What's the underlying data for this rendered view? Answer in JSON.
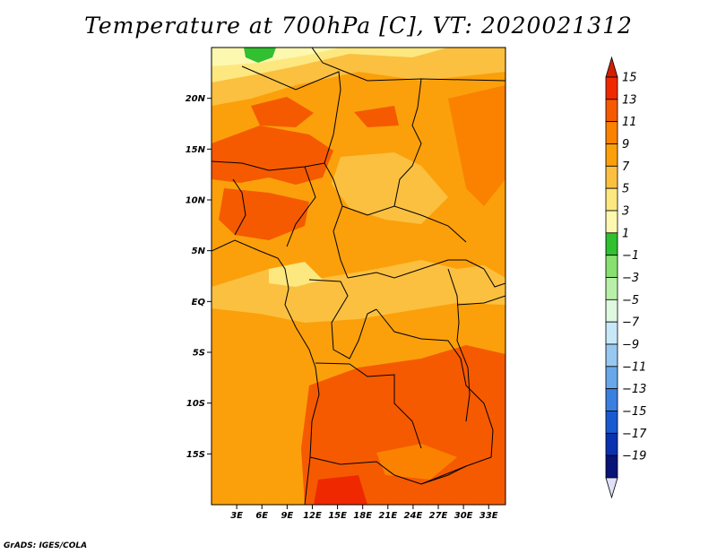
{
  "title": "Temperature at 700hPa [C], VT: 2020021312",
  "credit": "GrADS: IGES/COLA",
  "map": {
    "lat_range": [
      -20,
      25
    ],
    "lon_range": [
      0,
      35
    ],
    "lat_ticks": [
      {
        "lat": 20,
        "label": "20N"
      },
      {
        "lat": 15,
        "label": "15N"
      },
      {
        "lat": 10,
        "label": "10N"
      },
      {
        "lat": 5,
        "label": "5N"
      },
      {
        "lat": 0,
        "label": "EQ"
      },
      {
        "lat": -5,
        "label": "5S"
      },
      {
        "lat": -10,
        "label": "10S"
      },
      {
        "lat": -15,
        "label": "15S"
      }
    ],
    "lon_ticks": [
      {
        "lon": 3,
        "label": "3E"
      },
      {
        "lon": 6,
        "label": "6E"
      },
      {
        "lon": 9,
        "label": "9E"
      },
      {
        "lon": 12,
        "label": "12E"
      },
      {
        "lon": 15,
        "label": "15E"
      },
      {
        "lon": 18,
        "label": "18E"
      },
      {
        "lon": 21,
        "label": "21E"
      },
      {
        "lon": 24,
        "label": "24E"
      },
      {
        "lon": 27,
        "label": "27E"
      },
      {
        "lon": 30,
        "label": "30E"
      },
      {
        "lon": 33,
        "label": "33E"
      }
    ]
  },
  "colorbar": {
    "labels": [
      "15",
      "13",
      "11",
      "9",
      "7",
      "5",
      "3",
      "1",
      "−1",
      "−3",
      "−5",
      "−7",
      "−9",
      "−11",
      "−13",
      "−15",
      "−17",
      "−19"
    ],
    "colors": [
      "#f02800",
      "#f55a00",
      "#fa8200",
      "#fba00a",
      "#fbc040",
      "#fde880",
      "#fdf8b0",
      "#30c030",
      "#88e070",
      "#b8f0a8",
      "#dff8e0",
      "#c8e8f8",
      "#98c8f0",
      "#68a8e8",
      "#3a80e0",
      "#1a5ad0",
      "#0a32b0",
      "#081478"
    ],
    "top_arrow_color": "#d21e00",
    "bottom_arrow_color": "#e0e0f8"
  }
}
